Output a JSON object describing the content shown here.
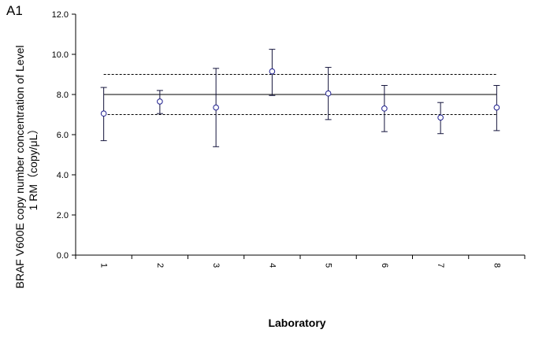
{
  "chart_data": {
    "type": "scatter",
    "panel_label": "A1",
    "title": "",
    "xlabel": "Laboratory",
    "ylabel_line1": "BRAF V600E copy number concentration of Level",
    "ylabel_line2": "1 RM（copy/μL）",
    "categories": [
      "1",
      "2",
      "3",
      "4",
      "5",
      "6",
      "7",
      "8"
    ],
    "values": [
      7.05,
      7.65,
      7.35,
      9.15,
      8.05,
      7.3,
      6.85,
      7.35
    ],
    "error_low": [
      5.7,
      7.05,
      5.4,
      7.95,
      6.75,
      6.15,
      6.05,
      6.2
    ],
    "error_high": [
      8.35,
      8.2,
      9.3,
      10.25,
      9.35,
      8.45,
      7.6,
      8.45
    ],
    "ylim": [
      0,
      12
    ],
    "ytick_labels": [
      "0.0",
      "2.0",
      "4.0",
      "6.0",
      "8.0",
      "10.0",
      "12.0"
    ],
    "reference_line": 8.0,
    "limit_lines": [
      7.0,
      9.0
    ],
    "grid": false,
    "marker_color": "#1f1f8f",
    "errorbar_color": "#14143c"
  }
}
